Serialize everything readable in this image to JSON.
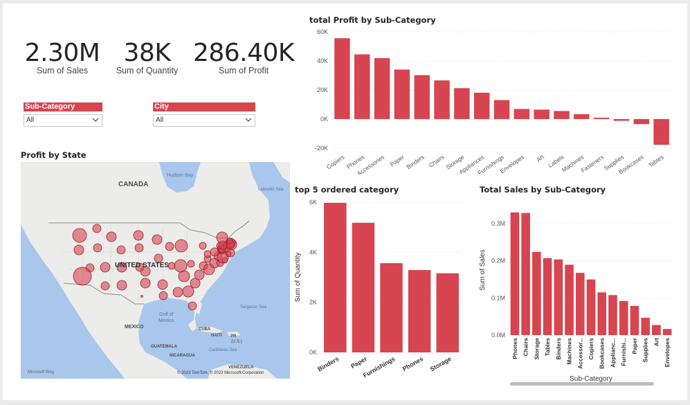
{
  "kpis": [
    {
      "value": "2.30M",
      "label": "Sum of Sales"
    },
    {
      "value": "38K",
      "label": "Sum of Quantity"
    },
    {
      "value": "286.40K",
      "label": "Sum of Profit"
    }
  ],
  "slicers": [
    {
      "title": "Sub-Category",
      "value": "All"
    },
    {
      "title": "City",
      "value": "All"
    }
  ],
  "map": {
    "title": "Profit by State",
    "labels": {
      "canada": "CANADA",
      "usa": "UNITED STATES",
      "mexico": "MEXICO",
      "hudson": "Hudson Bay",
      "labrador": "Labrador Sea",
      "sargasso": "Sargasso Sea",
      "gulf1": "Gulf of",
      "gulf2": "Mexico",
      "cuba": "CUBA",
      "haiti": "HAITI",
      "pr1": "PR",
      "pr2": "(U.S.)",
      "guatemala": "GUATEMALA",
      "nicaragua": "NICARAGUA",
      "caribbean": "Caribbean Sea",
      "venezuela": "VENEZUELA"
    },
    "logo": "Microsoft Bing",
    "copyright": "© 2023 TomTom, © 2023 Microsoft Corporation",
    "bubble_color": "#d64550"
  },
  "chart_data": [
    {
      "type": "bar",
      "title": "total Profit by Sub-Category",
      "categories": [
        "Copiers",
        "Phones",
        "Accessories",
        "Paper",
        "Binders",
        "Chairs",
        "Storage",
        "Appliances",
        "Furnishings",
        "Envelopes",
        "Art",
        "Labels",
        "Machines",
        "Fasteners",
        "Supplies",
        "Bookcases",
        "Tables"
      ],
      "values": [
        55618,
        44516,
        41937,
        34054,
        30222,
        26590,
        21279,
        18138,
        13059,
        6964,
        6528,
        5546,
        3385,
        950,
        -1189,
        -3473,
        -17725
      ],
      "ylim": [
        -20000,
        60000
      ],
      "yticks": [
        -20000,
        0,
        20000,
        40000,
        60000
      ],
      "ytick_labels": [
        "-20K",
        "0K",
        "20K",
        "40K",
        "60K"
      ],
      "grid": true,
      "color": "#d64550"
    },
    {
      "type": "bar",
      "title": "top 5 ordered category",
      "categories": [
        "Binders",
        "Paper",
        "Furnishings",
        "Phones",
        "Storage"
      ],
      "values": [
        5974,
        5178,
        3563,
        3289,
        3158
      ],
      "ylabel": "Sum of Quantity",
      "ylim": [
        0,
        6000
      ],
      "yticks": [
        0,
        2000,
        4000,
        6000
      ],
      "ytick_labels": [
        "0K",
        "2K",
        "4K",
        "6K"
      ],
      "grid": true,
      "color": "#d64550"
    },
    {
      "type": "bar",
      "title": "Total Sales by Sub-Category",
      "categories": [
        "Phones",
        "Chairs",
        "Storage",
        "Tables",
        "Binders",
        "Machines",
        "Accessor...",
        "Copiers",
        "Bookcases",
        "Applianc...",
        "Furnishi...",
        "Paper",
        "Supplies",
        "Art",
        "Envelopes"
      ],
      "values": [
        330007,
        328449,
        223844,
        206966,
        203413,
        189239,
        167380,
        149528,
        114880,
        107532,
        91705,
        78479,
        46674,
        27119,
        16476
      ],
      "xlabel": "Sub-Category",
      "ylabel": "Sum of Sales",
      "ylim": [
        0,
        350000
      ],
      "yticks": [
        0,
        100000,
        200000,
        300000
      ],
      "ytick_labels": [
        "0.0M",
        "0.1M",
        "0.2M",
        "0.3M"
      ],
      "grid": true,
      "color": "#d64550"
    }
  ]
}
